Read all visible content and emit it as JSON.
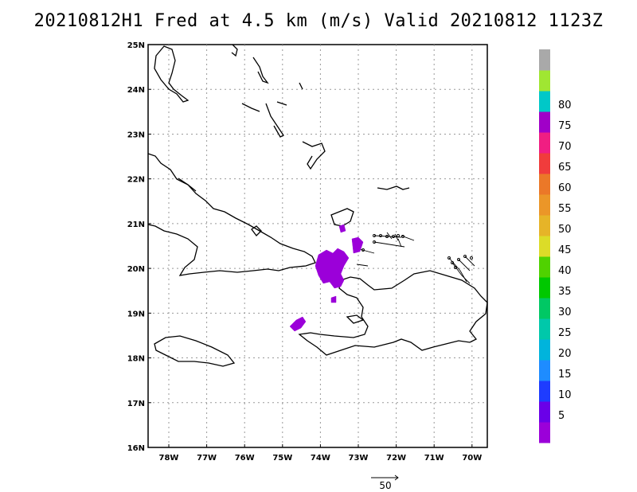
{
  "title": "20210812H1 Fred at 4.5 km (m/s) Valid 20210812  1123Z",
  "map": {
    "lat_labels": [
      "25N",
      "24N",
      "23N",
      "22N",
      "21N",
      "20N",
      "19N",
      "18N",
      "17N",
      "16N"
    ],
    "lon_labels": [
      "78W",
      "77W",
      "76W",
      "75W",
      "74W",
      "73W",
      "72W",
      "71W",
      "70W"
    ],
    "grid": true
  },
  "colorbar": {
    "labels": [
      "5",
      "10",
      "15",
      "20",
      "25",
      "30",
      "35",
      "40",
      "45",
      "50",
      "55",
      "60",
      "65",
      "70",
      "75",
      "80"
    ],
    "colors": [
      "#9b00d9",
      "#6a00e8",
      "#1e3cff",
      "#1e8cff",
      "#00b4dc",
      "#00c8aa",
      "#00c864",
      "#00c800",
      "#50d200",
      "#dcdc28",
      "#e6b428",
      "#eb9628",
      "#eb7828",
      "#f03c3c",
      "#f01e82",
      "#a000c8",
      "#00c8c8",
      "#a0e632",
      "#a9a9a9"
    ],
    "top_color": "#a9a9a9"
  },
  "reference_vector": {
    "label": "50"
  },
  "wind_color": "#9b00d9"
}
